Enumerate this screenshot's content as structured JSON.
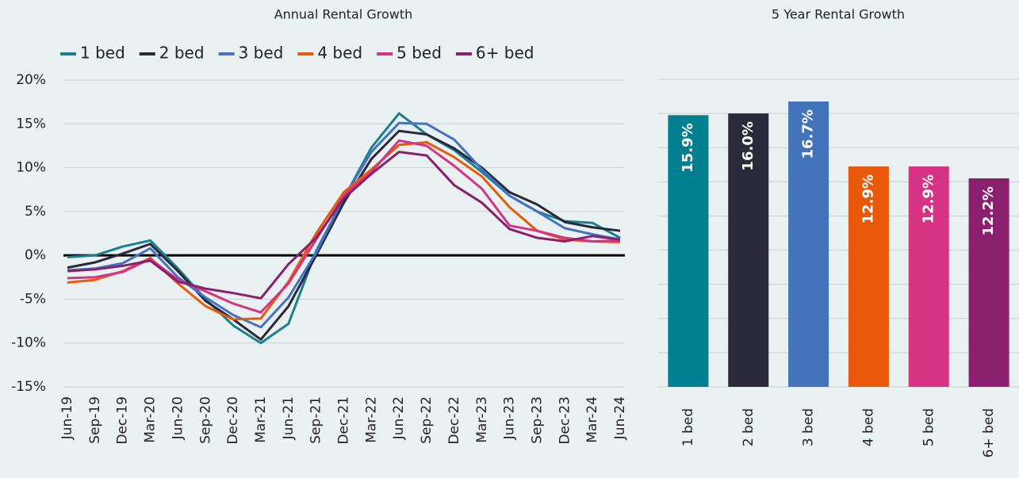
{
  "chart_data": [
    {
      "type": "line",
      "title": "Annual Rental Growth",
      "categories": [
        "Jun-19",
        "Sep-19",
        "Dec-19",
        "Mar-20",
        "Jun-20",
        "Sep-20",
        "Dec-20",
        "Mar-21",
        "Jun-21",
        "Sep-21",
        "Dec-21",
        "Mar-22",
        "Jun-22",
        "Sep-22",
        "Dec-22",
        "Mar-23",
        "Jun-23",
        "Sep-23",
        "Dec-23",
        "Mar-24",
        "Jun-24"
      ],
      "series": [
        {
          "name": "1 bed",
          "color": "#1a8090",
          "values": [
            -0.2,
            0,
            1.0,
            1.7,
            -1.5,
            -5,
            -8,
            -10,
            -7.8,
            0.5,
            6.5,
            12.3,
            16.2,
            13.8,
            12.0,
            9.5,
            6.8,
            5.0,
            3.9,
            3.7,
            2.0
          ]
        },
        {
          "name": "2 bed",
          "color": "#2a2838",
          "values": [
            -1.4,
            -0.8,
            0.2,
            1.3,
            -1.8,
            -5.2,
            -7.3,
            -9.6,
            -5.8,
            0,
            6,
            11.0,
            14.2,
            13.8,
            12.2,
            10,
            7.2,
            5.8,
            3.8,
            3.2,
            2.8
          ]
        },
        {
          "name": "3 bed",
          "color": "#4472c4",
          "values": [
            -1.7,
            -1.5,
            -0.9,
            0.8,
            -2.5,
            -4.8,
            -6.8,
            -8.2,
            -4.8,
            0.3,
            6.6,
            11.8,
            15.1,
            15.0,
            13.2,
            9.8,
            6.8,
            5.0,
            3.1,
            2.4,
            1.8
          ]
        },
        {
          "name": "4 bed",
          "color": "#e8590c",
          "values": [
            -3.1,
            -2.8,
            -1.8,
            -0.3,
            -3.2,
            -5.8,
            -7.3,
            -7.2,
            -3.0,
            2.5,
            7.2,
            9.8,
            12.6,
            12.9,
            11.2,
            9.0,
            5.5,
            2.8,
            1.8,
            1.6,
            1.5
          ]
        },
        {
          "name": "5 bed",
          "color": "#d63384",
          "values": [
            -2.6,
            -2.5,
            -1.9,
            -0.4,
            -2.8,
            -4.1,
            -5.5,
            -6.5,
            -3.2,
            1.8,
            6.8,
            9.5,
            13.1,
            12.5,
            10.2,
            7.6,
            3.4,
            2.8,
            2.0,
            1.6,
            1.7
          ]
        },
        {
          "name": "6+ bed",
          "color": "#8a1f6e",
          "values": [
            -1.8,
            -1.6,
            -1.2,
            -0.6,
            -3.0,
            -3.8,
            -4.3,
            -4.9,
            -1.0,
            2.0,
            6.5,
            9.3,
            11.8,
            11.4,
            8.0,
            6.0,
            3.0,
            2.0,
            1.6,
            2.2,
            1.8
          ]
        }
      ],
      "ylim": [
        -15,
        20
      ],
      "yticks": [
        {
          "value": -15,
          "label": "-15%"
        },
        {
          "value": -10,
          "label": "-10%"
        },
        {
          "value": -5,
          "label": "-5%"
        },
        {
          "value": 0,
          "label": "0%"
        },
        {
          "value": 5,
          "label": "5%"
        },
        {
          "value": 10,
          "label": "10%"
        },
        {
          "value": 15,
          "label": "15%"
        },
        {
          "value": 20,
          "label": "20%"
        }
      ],
      "grid": true,
      "legend": "top"
    },
    {
      "type": "bar",
      "title": "5 Year Rental Growth",
      "categories": [
        "1 bed",
        "2 bed",
        "3 bed",
        "4 bed",
        "5 bed",
        "6+ bed"
      ],
      "values": [
        15.9,
        16.0,
        16.7,
        12.9,
        12.9,
        12.2
      ],
      "value_labels": [
        "15.9%",
        "16.0%",
        "16.7%",
        "12.9%",
        "12.9%",
        "12.2%"
      ],
      "colors": [
        "#00808f",
        "#2b2a3a",
        "#4373bb",
        "#e8590c",
        "#d63384",
        "#8a1f6e"
      ],
      "ylim": [
        0,
        18
      ],
      "yticks": [
        0,
        2,
        4,
        6,
        8,
        10,
        12,
        14,
        16,
        18
      ],
      "grid": true
    }
  ]
}
